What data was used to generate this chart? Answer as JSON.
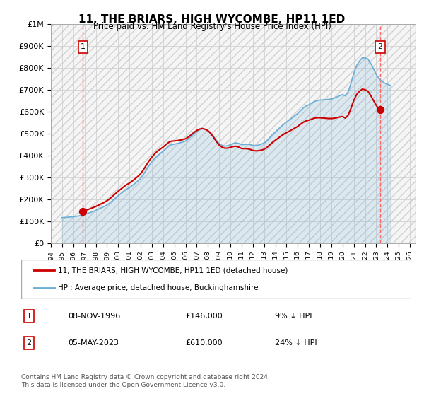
{
  "title": "11, THE BRIARS, HIGH WYCOMBE, HP11 1ED",
  "subtitle": "Price paid vs. HM Land Registry's House Price Index (HPI)",
  "ylabel": "",
  "xlabel": "",
  "hpi_color": "#6baed6",
  "price_color": "#cc0000",
  "dashed_line_color": "#ff6666",
  "background_color": "#ffffff",
  "plot_bg_color": "#f5f5f5",
  "hatch_color": "#e0e0e0",
  "ylim": [
    0,
    1000000
  ],
  "xlim_start": 1994.0,
  "xlim_end": 2026.5,
  "sale1_x": 1996.86,
  "sale1_y": 146000,
  "sale2_x": 2023.35,
  "sale2_y": 610000,
  "sale1_label": "1",
  "sale2_label": "2",
  "legend_line1": "11, THE BRIARS, HIGH WYCOMBE, HP11 1ED (detached house)",
  "legend_line2": "HPI: Average price, detached house, Buckinghamshire",
  "table_row1": [
    "1",
    "08-NOV-1996",
    "£146,000",
    "9% ↓ HPI"
  ],
  "table_row2": [
    "2",
    "05-MAY-2023",
    "£610,000",
    "24% ↓ HPI"
  ],
  "footnote": "Contains HM Land Registry data © Crown copyright and database right 2024.\nThis data is licensed under the Open Government Licence v3.0.",
  "yticks": [
    0,
    100000,
    200000,
    300000,
    400000,
    500000,
    600000,
    700000,
    800000,
    900000,
    1000000
  ],
  "ytick_labels": [
    "£0",
    "£100K",
    "£200K",
    "£300K",
    "£400K",
    "£500K",
    "£600K",
    "£700K",
    "£800K",
    "£900K",
    "£1M"
  ],
  "hpi_data_x": [
    1995.0,
    1995.25,
    1995.5,
    1995.75,
    1996.0,
    1996.25,
    1996.5,
    1996.75,
    1997.0,
    1997.25,
    1997.5,
    1997.75,
    1998.0,
    1998.25,
    1998.5,
    1998.75,
    1999.0,
    1999.25,
    1999.5,
    1999.75,
    2000.0,
    2000.25,
    2000.5,
    2000.75,
    2001.0,
    2001.25,
    2001.5,
    2001.75,
    2002.0,
    2002.25,
    2002.5,
    2002.75,
    2003.0,
    2003.25,
    2003.5,
    2003.75,
    2004.0,
    2004.25,
    2004.5,
    2004.75,
    2005.0,
    2005.25,
    2005.5,
    2005.75,
    2006.0,
    2006.25,
    2006.5,
    2006.75,
    2007.0,
    2007.25,
    2007.5,
    2007.75,
    2008.0,
    2008.25,
    2008.5,
    2008.75,
    2009.0,
    2009.25,
    2009.5,
    2009.75,
    2010.0,
    2010.25,
    2010.5,
    2010.75,
    2011.0,
    2011.25,
    2011.5,
    2011.75,
    2012.0,
    2012.25,
    2012.5,
    2012.75,
    2013.0,
    2013.25,
    2013.5,
    2013.75,
    2014.0,
    2014.25,
    2014.5,
    2014.75,
    2015.0,
    2015.25,
    2015.5,
    2015.75,
    2016.0,
    2016.25,
    2016.5,
    2016.75,
    2017.0,
    2017.25,
    2017.5,
    2017.75,
    2018.0,
    2018.25,
    2018.5,
    2018.75,
    2019.0,
    2019.25,
    2019.5,
    2019.75,
    2020.0,
    2020.25,
    2020.5,
    2020.75,
    2021.0,
    2021.25,
    2021.5,
    2021.75,
    2022.0,
    2022.25,
    2022.5,
    2022.75,
    2023.0,
    2023.25,
    2023.5,
    2023.75,
    2024.0,
    2024.25
  ],
  "hpi_data_y": [
    118000,
    119000,
    120000,
    121000,
    122000,
    124000,
    126000,
    129000,
    133000,
    137000,
    141000,
    146000,
    151000,
    157000,
    163000,
    169000,
    176000,
    185000,
    196000,
    207000,
    218000,
    228000,
    238000,
    247000,
    255000,
    264000,
    274000,
    285000,
    297000,
    315000,
    335000,
    355000,
    372000,
    387000,
    400000,
    410000,
    420000,
    432000,
    443000,
    450000,
    452000,
    455000,
    458000,
    462000,
    467000,
    476000,
    488000,
    500000,
    510000,
    518000,
    522000,
    520000,
    515000,
    504000,
    488000,
    470000,
    455000,
    447000,
    443000,
    445000,
    450000,
    455000,
    458000,
    455000,
    450000,
    451000,
    452000,
    450000,
    447000,
    446000,
    448000,
    452000,
    458000,
    468000,
    482000,
    496000,
    508000,
    520000,
    532000,
    543000,
    553000,
    562000,
    572000,
    582000,
    592000,
    605000,
    617000,
    626000,
    632000,
    640000,
    647000,
    651000,
    653000,
    654000,
    655000,
    656000,
    658000,
    662000,
    667000,
    673000,
    678000,
    672000,
    690000,
    730000,
    775000,
    810000,
    830000,
    845000,
    845000,
    840000,
    820000,
    795000,
    770000,
    750000,
    738000,
    730000,
    725000,
    720000
  ],
  "price_data_x": [
    1996.86,
    2023.35
  ],
  "price_data_y": [
    146000,
    610000
  ]
}
